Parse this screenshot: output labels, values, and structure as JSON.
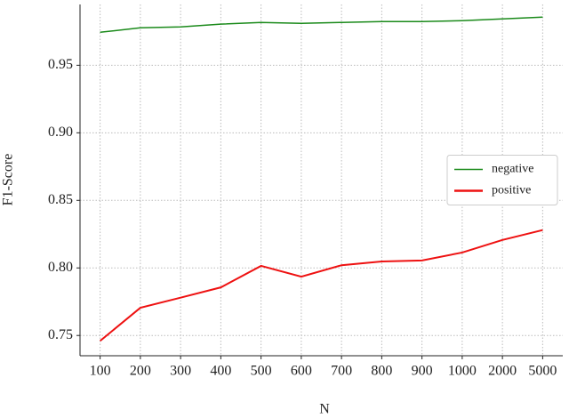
{
  "chart_data": {
    "type": "line",
    "x_label": "N",
    "y_label": "F1-Score",
    "categories": [
      "100",
      "200",
      "300",
      "400",
      "500",
      "600",
      "700",
      "800",
      "900",
      "1000",
      "2000",
      "5000"
    ],
    "series": [
      {
        "name": "negative",
        "color": "#1a8a1a",
        "values": [
          0.9744,
          0.9777,
          0.9784,
          0.9804,
          0.9817,
          0.981,
          0.9817,
          0.9823,
          0.9823,
          0.983,
          0.9843,
          0.9856
        ]
      },
      {
        "name": "positive",
        "color": "#ee1111",
        "values": [
          0.746,
          0.7705,
          0.778,
          0.7856,
          0.8015,
          0.7935,
          0.802,
          0.8048,
          0.8055,
          0.8114,
          0.8207,
          0.828
        ]
      }
    ],
    "ylim": [
      0.735,
      0.995
    ],
    "yticks": [
      0.75,
      {
        "value": 0.8,
        "label": "0.80"
      },
      0.85,
      {
        "value": 0.9,
        "label": "0.90"
      },
      0.95
    ],
    "grid": true,
    "legend": "right"
  }
}
